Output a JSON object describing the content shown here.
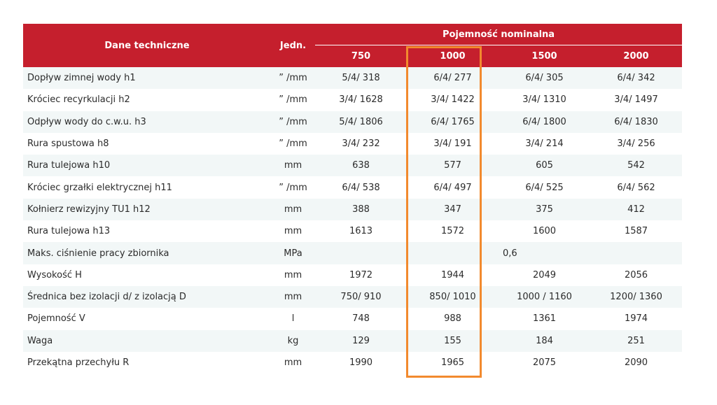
{
  "header": {
    "col_name": "Dane techniczne",
    "col_unit": "Jedn.",
    "group_label": "Pojemność nominalna",
    "volumes": [
      "750",
      "1000",
      "1500",
      "2000"
    ]
  },
  "rows": [
    {
      "name": "Dopływ zimnej wody h1",
      "unit": "” /mm",
      "v": [
        "5/4/ 318",
        "6/4/ 277",
        "6/4/ 305",
        "6/4/ 342"
      ]
    },
    {
      "name": "Króciec recyrkulacji h2",
      "unit": "” /mm",
      "v": [
        "3/4/ 1628",
        "3/4/ 1422",
        "3/4/ 1310",
        "3/4/ 1497"
      ]
    },
    {
      "name": "Odpływ wody do c.w.u. h3",
      "unit": "” /mm",
      "v": [
        "5/4/ 1806",
        "6/4/ 1765",
        "6/4/ 1800",
        "6/4/ 1830"
      ]
    },
    {
      "name": "Rura spustowa h8",
      "unit": "” /mm",
      "v": [
        "3/4/ 232",
        "3/4/ 191",
        "3/4/ 214",
        "3/4/ 256"
      ]
    },
    {
      "name": "Rura tulejowa h10",
      "unit": "mm",
      "v": [
        "638",
        "577",
        "605",
        "542"
      ]
    },
    {
      "name": "Króciec grzałki elektrycznej h11",
      "unit": "” /mm",
      "v": [
        "6/4/ 538",
        "6/4/ 497",
        "6/4/ 525",
        "6/4/ 562"
      ]
    },
    {
      "name": "Kołnierz rewizyjny TU1 h12",
      "unit": "mm",
      "v": [
        "388",
        "347",
        "375",
        "412"
      ]
    },
    {
      "name": "Rura tulejowa h13",
      "unit": "mm",
      "v": [
        "1613",
        "1572",
        "1600",
        "1587"
      ]
    },
    {
      "name": "Maks. ciśnienie pracy zbiornika",
      "unit": "MPa",
      "merged": "0,6"
    },
    {
      "name": "Wysokość H",
      "unit": "mm",
      "v": [
        "1972",
        "1944",
        "2049",
        "2056"
      ]
    },
    {
      "name": "Średnica bez izolacji d/ z izolacją D",
      "unit": "mm",
      "v": [
        "750/ 910",
        "850/ 1010",
        "1000 / 1160",
        "1200/ 1360"
      ]
    },
    {
      "name": "Pojemność V",
      "unit": "l",
      "v": [
        "748",
        "988",
        "1361",
        "1974"
      ]
    },
    {
      "name": "Waga",
      "unit": "kg",
      "v": [
        "129",
        "155",
        "184",
        "251"
      ]
    },
    {
      "name": "Przekątna przechyłu R",
      "unit": "mm",
      "v": [
        "1990",
        "1965",
        "2075",
        "2090"
      ]
    }
  ],
  "highlight": {
    "column": "1000",
    "color": "#f28a2e"
  },
  "colors": {
    "header_bg": "#c51f2d",
    "row_alt_bg": "#f2f7f7",
    "text": "#2b2b2b"
  }
}
